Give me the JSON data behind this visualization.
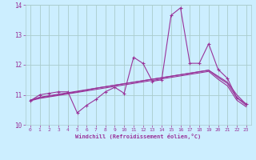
{
  "xlabel": "Windchill (Refroidissement éolien,°C)",
  "xlim": [
    -0.5,
    23.5
  ],
  "ylim": [
    10,
    14
  ],
  "yticks": [
    10,
    11,
    12,
    13,
    14
  ],
  "xticks": [
    0,
    1,
    2,
    3,
    4,
    5,
    6,
    7,
    8,
    9,
    10,
    11,
    12,
    13,
    14,
    15,
    16,
    17,
    18,
    19,
    20,
    21,
    22,
    23
  ],
  "bg_color": "#cceeff",
  "grid_color": "#aacccc",
  "line_color": "#993399",
  "tick_color": "#993399",
  "label_color": "#993399",
  "line1_y": [
    10.8,
    11.0,
    11.05,
    11.1,
    11.1,
    10.4,
    10.65,
    10.85,
    11.1,
    11.25,
    11.05,
    12.25,
    12.05,
    11.45,
    11.5,
    13.65,
    13.9,
    12.05,
    12.05,
    12.7,
    11.85,
    11.55,
    10.9,
    10.7
  ],
  "line2_y": [
    10.82,
    10.92,
    10.97,
    11.02,
    11.07,
    11.12,
    11.17,
    11.22,
    11.27,
    11.32,
    11.37,
    11.42,
    11.47,
    11.52,
    11.57,
    11.62,
    11.67,
    11.72,
    11.77,
    11.82,
    11.62,
    11.42,
    11.0,
    10.68
  ],
  "line3_y": [
    10.82,
    10.9,
    10.95,
    11.0,
    11.05,
    11.1,
    11.16,
    11.22,
    11.27,
    11.32,
    11.37,
    11.42,
    11.47,
    11.52,
    11.57,
    11.62,
    11.67,
    11.72,
    11.77,
    11.82,
    11.58,
    11.38,
    10.9,
    10.65
  ],
  "line4_y": [
    10.8,
    10.88,
    10.93,
    10.98,
    11.03,
    11.08,
    11.13,
    11.18,
    11.23,
    11.28,
    11.33,
    11.38,
    11.43,
    11.48,
    11.53,
    11.58,
    11.63,
    11.68,
    11.73,
    11.78,
    11.52,
    11.3,
    10.82,
    10.6
  ]
}
